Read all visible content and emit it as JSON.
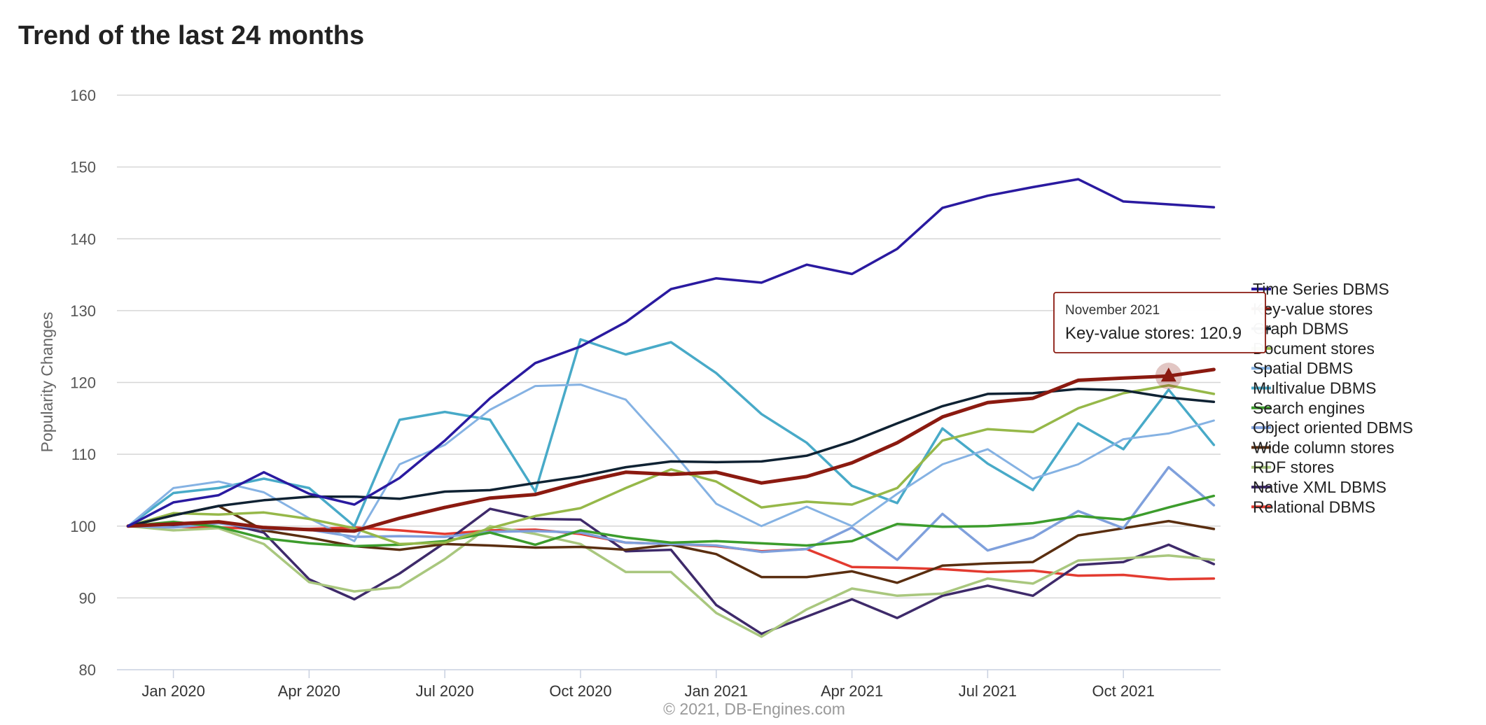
{
  "page_title": "Trend of the last 24 months",
  "chart_data": {
    "type": "line",
    "title": "Trend of the last 24 months",
    "ylabel": "Popularity Changes",
    "xlabel": "",
    "ylim": [
      80,
      160
    ],
    "yticks": [
      80,
      90,
      100,
      110,
      120,
      130,
      140,
      150,
      160
    ],
    "x": [
      "Dec 2019",
      "Jan 2020",
      "Feb 2020",
      "Mar 2020",
      "Apr 2020",
      "May 2020",
      "Jun 2020",
      "Jul 2020",
      "Aug 2020",
      "Sep 2020",
      "Oct 2020",
      "Nov 2020",
      "Dec 2020",
      "Jan 2021",
      "Feb 2021",
      "Mar 2021",
      "Apr 2021",
      "May 2021",
      "Jun 2021",
      "Jul 2021",
      "Aug 2021",
      "Sep 2021",
      "Oct 2021",
      "Nov 2021",
      "Dec 2021"
    ],
    "xticks": [
      {
        "label": "Jan 2020",
        "index": 1
      },
      {
        "label": "Apr 2020",
        "index": 4
      },
      {
        "label": "Jul 2020",
        "index": 7
      },
      {
        "label": "Oct 2020",
        "index": 10
      },
      {
        "label": "Jan 2021",
        "index": 13
      },
      {
        "label": "Apr 2021",
        "index": 16
      },
      {
        "label": "Jul 2021",
        "index": 19
      },
      {
        "label": "Oct 2021",
        "index": 22
      }
    ],
    "grid": true,
    "legend_position": "right",
    "credit": "© 2021, DB-Engines.com",
    "tooltip": {
      "date": "November 2021",
      "text": "Key-value stores: 120.9",
      "series": "Key-value stores",
      "index": 23
    },
    "series": [
      {
        "name": "Time Series DBMS",
        "color": "#2a1aa0",
        "width": 3.5,
        "values": [
          100,
          103.3,
          104.3,
          107.5,
          104.5,
          103,
          106.7,
          111.9,
          117.8,
          122.7,
          125,
          128.4,
          133,
          134.5,
          133.9,
          136.4,
          135.1,
          138.6,
          144.3,
          146,
          147.2,
          148.3,
          145.2,
          144.8,
          144.4
        ]
      },
      {
        "name": "Key-value stores",
        "color": "#8b1a10",
        "width": 5,
        "values": [
          100,
          100.3,
          100.6,
          99.8,
          99.5,
          99.3,
          101.1,
          102.6,
          103.9,
          104.4,
          106.1,
          107.5,
          107.2,
          107.5,
          106,
          106.9,
          108.8,
          111.6,
          115.2,
          117.2,
          117.8,
          120.3,
          120.6,
          120.9,
          121.8
        ]
      },
      {
        "name": "Graph DBMS",
        "color": "#0f2233",
        "width": 3.5,
        "values": [
          100,
          101.5,
          102.8,
          103.6,
          104.1,
          104.1,
          103.8,
          104.8,
          105,
          106,
          106.9,
          108.2,
          109,
          108.9,
          109,
          109.8,
          111.8,
          114.3,
          116.7,
          118.4,
          118.5,
          119.1,
          118.9,
          117.9,
          117.3
        ]
      },
      {
        "name": "Document stores",
        "color": "#96b849",
        "width": 3.5,
        "values": [
          100,
          101.8,
          101.6,
          101.9,
          101,
          99.7,
          97.5,
          97.7,
          99.7,
          101.4,
          102.5,
          105.3,
          107.9,
          106.2,
          102.6,
          103.4,
          103,
          105.3,
          111.9,
          113.5,
          113.1,
          116.4,
          118.5,
          119.6,
          118.4
        ]
      },
      {
        "name": "Spatial DBMS",
        "color": "#85b2e3",
        "width": 3,
        "values": [
          100,
          105.3,
          106.2,
          104.7,
          101.1,
          97.9,
          108.6,
          111.3,
          116.2,
          119.5,
          119.7,
          117.6,
          110.6,
          103.1,
          100,
          102.7,
          100,
          104.5,
          108.6,
          110.7,
          106.6,
          108.6,
          112.1,
          112.9,
          114.7
        ]
      },
      {
        "name": "Multivalue DBMS",
        "color": "#48aac8",
        "width": 3.5,
        "values": [
          100,
          104.6,
          105.3,
          106.6,
          105.3,
          100,
          114.8,
          115.9,
          114.8,
          104.8,
          126,
          123.9,
          125.6,
          121.3,
          115.6,
          111.6,
          105.6,
          103.2,
          113.6,
          108.7,
          105,
          114.3,
          110.7,
          119,
          111.3
        ]
      },
      {
        "name": "Search engines",
        "color": "#3c9c2c",
        "width": 3.5,
        "values": [
          100,
          100.6,
          99.9,
          98.3,
          97.6,
          97.2,
          97.4,
          97.9,
          99.1,
          97.4,
          99.4,
          98.4,
          97.7,
          97.9,
          97.6,
          97.3,
          97.9,
          100.3,
          99.9,
          100,
          100.4,
          101.4,
          100.9,
          102.6,
          104.2
        ]
      },
      {
        "name": "Object oriented DBMS",
        "color": "#7fa0dc",
        "width": 3.5,
        "values": [
          100,
          99.8,
          100.4,
          99.6,
          99.5,
          98.5,
          98.6,
          98.5,
          99.2,
          99.3,
          99.1,
          97.7,
          97.5,
          97.3,
          96.4,
          96.8,
          99.8,
          95.3,
          101.7,
          96.6,
          98.4,
          102.1,
          99.7,
          108.2,
          102.9
        ]
      },
      {
        "name": "Wide column stores",
        "color": "#5a2e10",
        "width": 3.5,
        "values": [
          100,
          101.5,
          102.8,
          99.4,
          98.4,
          97.2,
          96.7,
          97.5,
          97.3,
          97,
          97.1,
          96.7,
          97.4,
          96.1,
          92.9,
          92.9,
          93.7,
          92.1,
          94.5,
          94.8,
          95,
          98.7,
          99.7,
          100.7,
          99.6
        ]
      },
      {
        "name": "RDF stores",
        "color": "#a9c77e",
        "width": 3.5,
        "values": [
          100,
          99.4,
          99.7,
          97.5,
          92.2,
          90.9,
          91.5,
          95.4,
          100,
          98.9,
          97.5,
          93.6,
          93.6,
          87.9,
          84.6,
          88.4,
          91.3,
          90.3,
          90.6,
          92.7,
          92,
          95.2,
          95.5,
          95.9,
          95.3
        ]
      },
      {
        "name": "Native XML DBMS",
        "color": "#3e2a6a",
        "width": 3.5,
        "values": [
          100,
          100,
          100.6,
          99.1,
          92.6,
          89.8,
          93.4,
          97.7,
          102.4,
          101,
          100.9,
          96.5,
          96.7,
          89,
          85,
          87.4,
          89.8,
          87.2,
          90.3,
          91.7,
          90.3,
          94.6,
          95,
          97.4,
          94.7
        ]
      },
      {
        "name": "Relational DBMS",
        "color": "#e33b30",
        "width": 3.5,
        "values": [
          100,
          99.9,
          99.8,
          99.6,
          99.6,
          99.8,
          99.4,
          98.9,
          99.4,
          99.5,
          98.9,
          97.7,
          97.5,
          97.2,
          96.5,
          96.8,
          94.3,
          94.2,
          94,
          93.6,
          93.8,
          93.1,
          93.2,
          92.6,
          92.7
        ]
      }
    ]
  }
}
